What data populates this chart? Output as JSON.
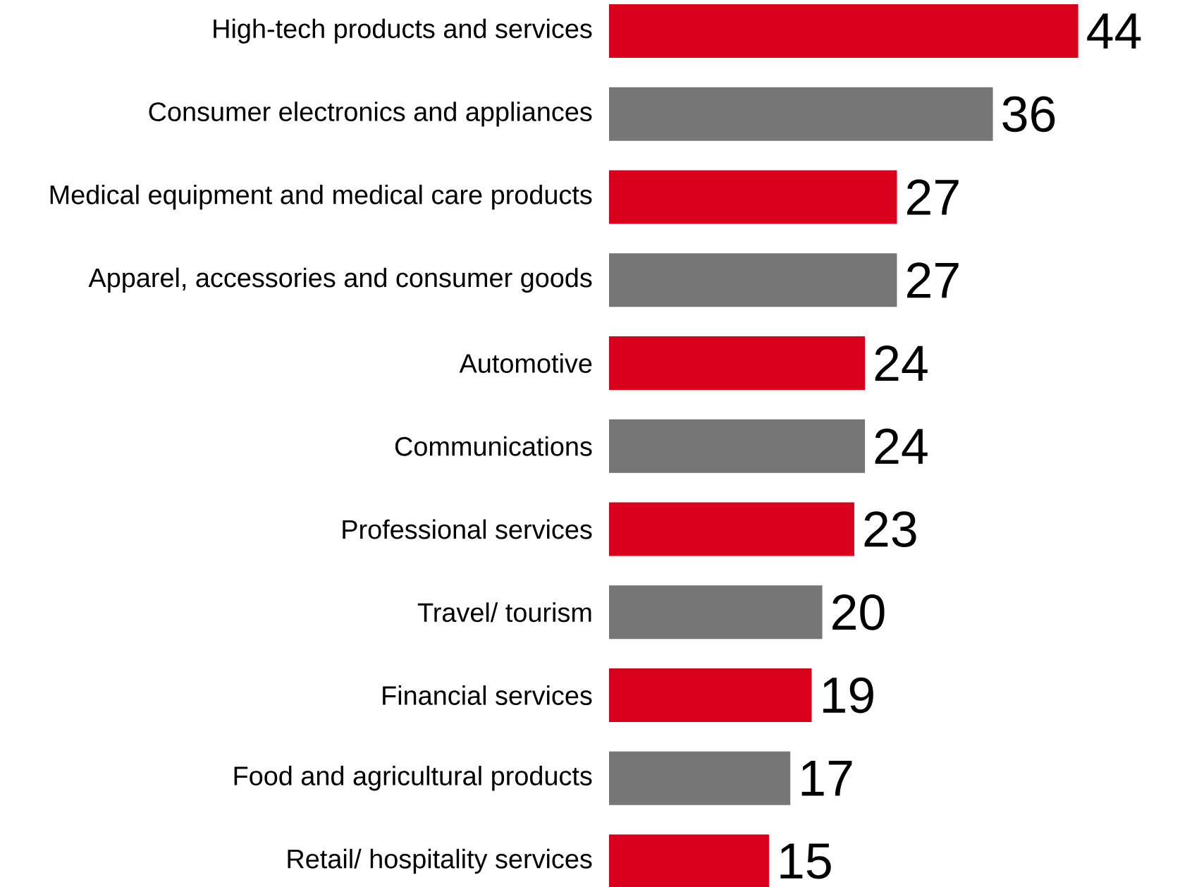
{
  "chart_data": {
    "type": "bar",
    "orientation": "horizontal",
    "data_labels": true,
    "categories": [
      "High-tech products and services",
      "Consumer electronics and appliances",
      "Medical equipment and medical care products",
      "Apparel, accessories and consumer goods",
      "Automotive",
      "Communications",
      "Professional services",
      "Travel/ tourism",
      "Financial services",
      "Food and agricultural products",
      "Retail/ hospitality services"
    ],
    "values": [
      44,
      36,
      27,
      27,
      24,
      24,
      23,
      20,
      19,
      17,
      15
    ],
    "colors": [
      "#d9001b",
      "#767676",
      "#d9001b",
      "#767676",
      "#d9001b",
      "#767676",
      "#d9001b",
      "#767676",
      "#d9001b",
      "#767676",
      "#d9001b"
    ]
  }
}
